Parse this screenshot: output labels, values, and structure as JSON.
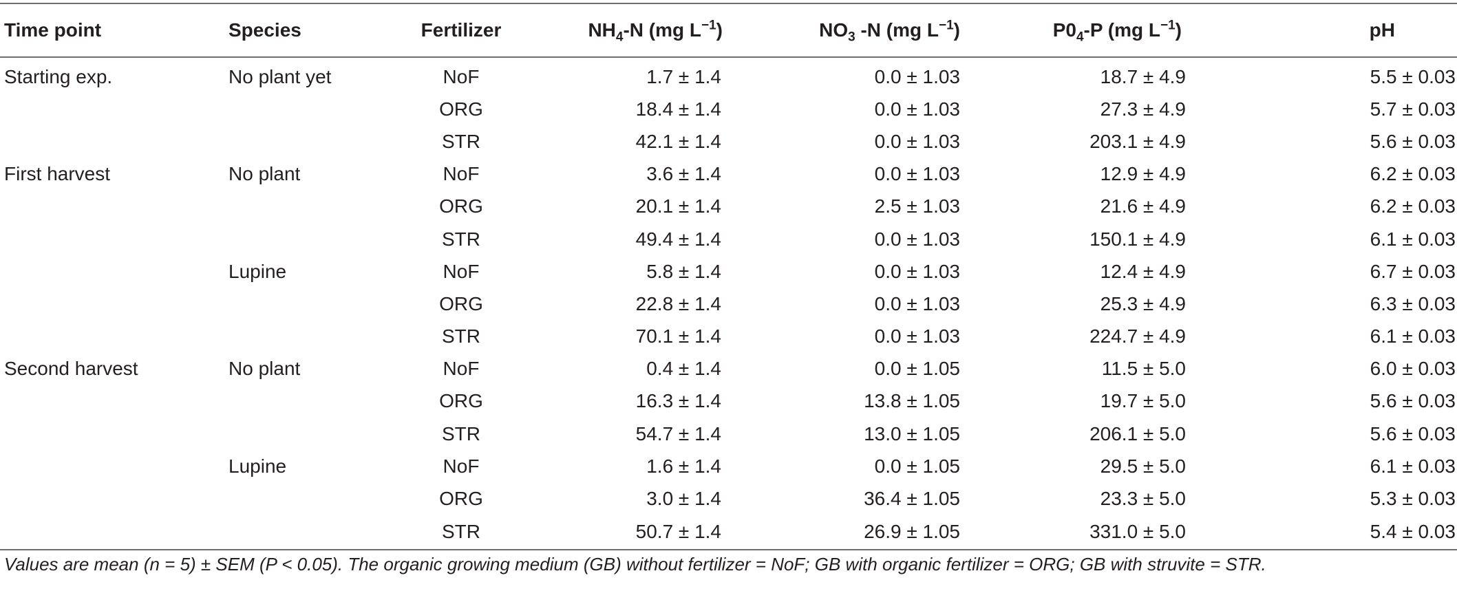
{
  "table": {
    "headers": {
      "time_point": "Time point",
      "species": "Species",
      "fertilizer": "Fertilizer",
      "nh4": {
        "pre": "NH",
        "sub": "4",
        "post": "-N (mg L",
        "sup": "−1",
        "end": ")"
      },
      "no3": {
        "pre": "NO",
        "sub": "3",
        "post": " -N (mg L",
        "sup": "−1",
        "end": ")"
      },
      "po4": {
        "pre": "P0",
        "sub": "4",
        "post": "-P (mg L",
        "sup": "−1",
        "end": ")"
      },
      "ph": "pH"
    },
    "rows": [
      {
        "time_point": "Starting exp.",
        "species": "No plant yet",
        "fertilizer": "NoF",
        "nh4": "1.7 ± 1.4",
        "no3": "0.0 ± 1.03",
        "po4": "18.7 ± 4.9",
        "ph": "5.5 ± 0.03"
      },
      {
        "time_point": "",
        "species": "",
        "fertilizer": "ORG",
        "nh4": "18.4 ± 1.4",
        "no3": "0.0 ± 1.03",
        "po4": "27.3 ± 4.9",
        "ph": "5.7 ± 0.03"
      },
      {
        "time_point": "",
        "species": "",
        "fertilizer": "STR",
        "nh4": "42.1 ± 1.4",
        "no3": "0.0 ± 1.03",
        "po4": "203.1 ± 4.9",
        "ph": "5.6 ± 0.03"
      },
      {
        "time_point": "First harvest",
        "species": "No plant",
        "fertilizer": "NoF",
        "nh4": "3.6 ± 1.4",
        "no3": "0.0 ± 1.03",
        "po4": "12.9 ± 4.9",
        "ph": "6.2 ± 0.03"
      },
      {
        "time_point": "",
        "species": "",
        "fertilizer": "ORG",
        "nh4": "20.1 ± 1.4",
        "no3": "2.5 ± 1.03",
        "po4": "21.6 ± 4.9",
        "ph": "6.2 ± 0.03"
      },
      {
        "time_point": "",
        "species": "",
        "fertilizer": "STR",
        "nh4": "49.4 ± 1.4",
        "no3": "0.0 ± 1.03",
        "po4": "150.1 ± 4.9",
        "ph": "6.1 ± 0.03"
      },
      {
        "time_point": "",
        "species": "Lupine",
        "fertilizer": "NoF",
        "nh4": "5.8 ± 1.4",
        "no3": "0.0 ± 1.03",
        "po4": "12.4 ± 4.9",
        "ph": "6.7 ± 0.03"
      },
      {
        "time_point": "",
        "species": "",
        "fertilizer": "ORG",
        "nh4": "22.8 ± 1.4",
        "no3": "0.0 ± 1.03",
        "po4": "25.3 ± 4.9",
        "ph": "6.3 ± 0.03"
      },
      {
        "time_point": "",
        "species": "",
        "fertilizer": "STR",
        "nh4": "70.1 ± 1.4",
        "no3": "0.0 ± 1.03",
        "po4": "224.7 ± 4.9",
        "ph": "6.1 ± 0.03"
      },
      {
        "time_point": "Second harvest",
        "species": "No plant",
        "fertilizer": "NoF",
        "nh4": "0.4 ± 1.4",
        "no3": "0.0 ± 1.05",
        "po4": "11.5 ± 5.0",
        "ph": "6.0 ± 0.03"
      },
      {
        "time_point": "",
        "species": "",
        "fertilizer": "ORG",
        "nh4": "16.3 ± 1.4",
        "no3": "13.8 ± 1.05",
        "po4": "19.7 ± 5.0",
        "ph": "5.6 ± 0.03"
      },
      {
        "time_point": "",
        "species": "",
        "fertilizer": "STR",
        "nh4": "54.7 ± 1.4",
        "no3": "13.0 ± 1.05",
        "po4": "206.1 ± 5.0",
        "ph": "5.6 ± 0.03"
      },
      {
        "time_point": "",
        "species": "Lupine",
        "fertilizer": "NoF",
        "nh4": "1.6 ± 1.4",
        "no3": "0.0 ± 1.05",
        "po4": "29.5 ± 5.0",
        "ph": "6.1 ± 0.03"
      },
      {
        "time_point": "",
        "species": "",
        "fertilizer": "ORG",
        "nh4": "3.0 ± 1.4",
        "no3": "36.4 ± 1.05",
        "po4": "23.3 ± 5.0",
        "ph": "5.3 ± 0.03"
      },
      {
        "time_point": "",
        "species": "",
        "fertilizer": "STR",
        "nh4": "50.7 ± 1.4",
        "no3": "26.9 ± 1.05",
        "po4": "331.0 ± 5.0",
        "ph": "5.4 ± 0.03"
      }
    ]
  },
  "footnote": "Values are mean (n = 5) ± SEM (P < 0.05). The organic growing medium (GB) without fertilizer = NoF; GB with organic fertilizer = ORG; GB with struvite = STR."
}
